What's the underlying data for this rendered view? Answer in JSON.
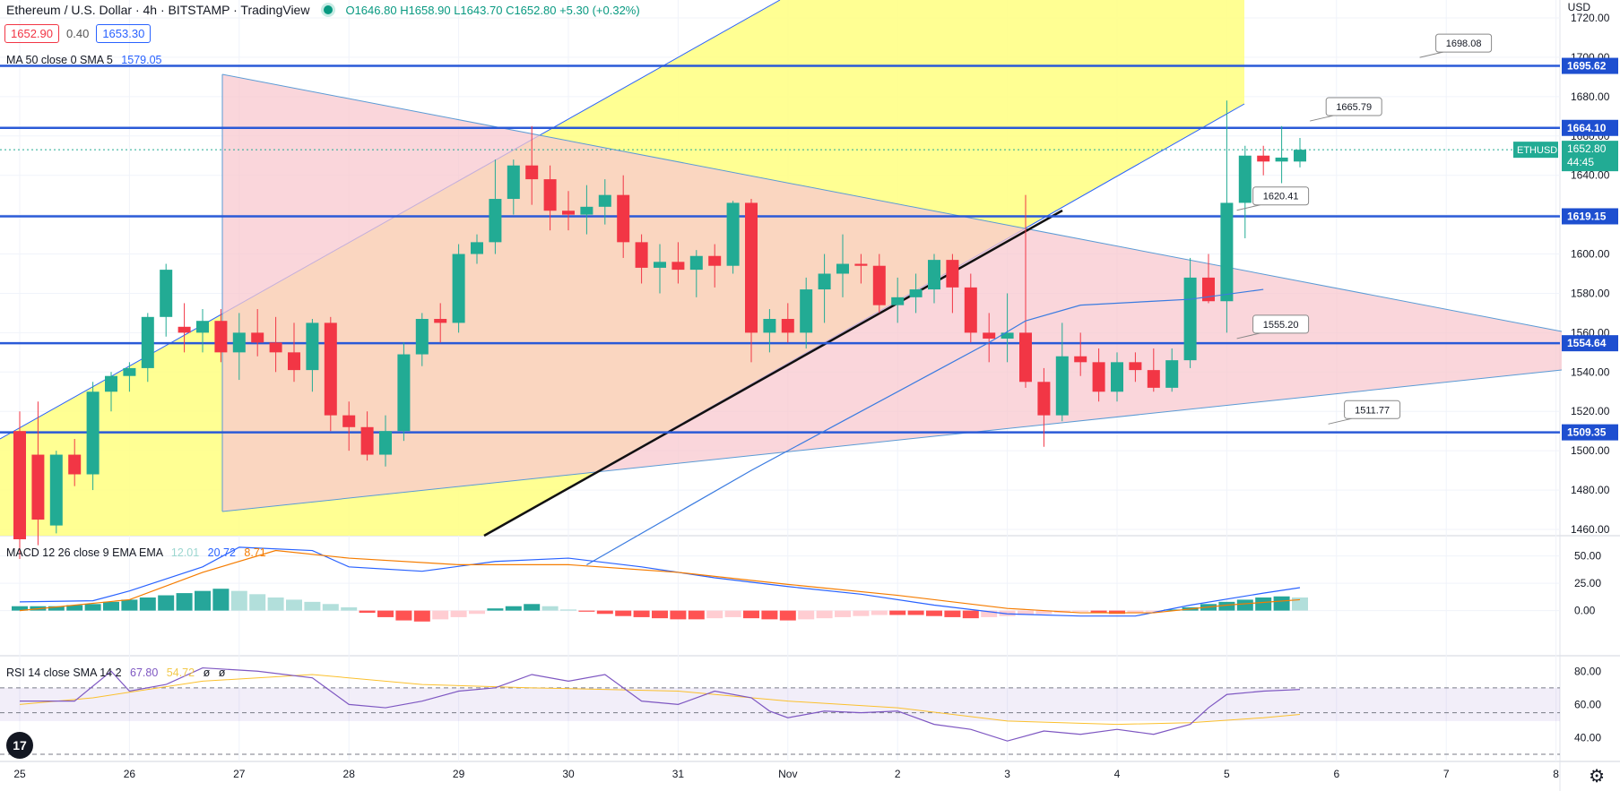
{
  "header": {
    "title": "Ethereum / U.S. Dollar · 4h · BITSTAMP · TradingView",
    "open": "O1646.80",
    "high": "H1658.90",
    "low": "L1643.70",
    "close": "C1652.80",
    "change": "+5.30 (+0.32%)",
    "sell_price": "1652.90",
    "spread": "0.40",
    "buy_price": "1653.30",
    "currency": "USD"
  },
  "indicators": {
    "ma_label": "MA 50 close 0 SMA 5",
    "ma_value": "1579.05",
    "macd_label": "MACD 12 26 close 9 EMA EMA",
    "macd_hist": "12.01",
    "macd_line": "20.72",
    "macd_signal": "8.71",
    "rsi_label": "RSI 14 close SMA 14 2",
    "rsi_value": "67.80",
    "rsi_ma": "54.72",
    "rsi_extra1": "ø",
    "rsi_extra2": "ø"
  },
  "chart_data": {
    "type": "candlestick",
    "symbol": "ETHUSD",
    "last_price": "1652.80",
    "countdown": "44:45",
    "colors": {
      "up": "#22ab94",
      "down": "#f23645",
      "hline": "#2a5ad7",
      "ma": "#3a7be0",
      "macd": "#2962ff",
      "signal": "#f57c00",
      "rsi": "#7e57c2",
      "rsi_ma": "#fbc02d",
      "yellow": "#ffff80",
      "pink": "#f8c8cf"
    },
    "price_axis": {
      "min": 1460,
      "max": 1720,
      "ticks": [
        1460,
        1480,
        1500,
        1520,
        1540,
        1560,
        1580,
        1600,
        1620,
        1640,
        1660,
        1680,
        1700,
        1720
      ]
    },
    "price_tick_labels": [
      "1460.00",
      "1480.00",
      "1500.00",
      "1520.00",
      "1540.00",
      "1560.00",
      "1580.00",
      "1600.00",
      "1620.00",
      "1640.00",
      "1660.00",
      "1680.00",
      "1700.00",
      "1720.00"
    ],
    "x_labels": [
      "25",
      "26",
      "27",
      "28",
      "29",
      "30",
      "31",
      "Nov",
      "2",
      "3",
      "4",
      "5",
      "6",
      "7",
      "8"
    ],
    "x_label_index": [
      0,
      6,
      12,
      18,
      24,
      30,
      36,
      42,
      48,
      54,
      60,
      66,
      72,
      78,
      84
    ],
    "candles": [
      [
        1510,
        1520,
        1445,
        1455
      ],
      [
        1498,
        1525,
        1452,
        1465
      ],
      [
        1462,
        1500,
        1458,
        1498
      ],
      [
        1498,
        1506,
        1482,
        1488
      ],
      [
        1488,
        1535,
        1480,
        1530
      ],
      [
        1530,
        1540,
        1520,
        1538
      ],
      [
        1538,
        1545,
        1530,
        1542
      ],
      [
        1542,
        1570,
        1535,
        1568
      ],
      [
        1568,
        1595,
        1558,
        1592
      ],
      [
        1563,
        1575,
        1550,
        1560
      ],
      [
        1560,
        1572,
        1550,
        1566
      ],
      [
        1566,
        1572,
        1545,
        1550
      ],
      [
        1550,
        1570,
        1536,
        1560
      ],
      [
        1560,
        1572,
        1548,
        1555
      ],
      [
        1555,
        1568,
        1540,
        1550
      ],
      [
        1550,
        1565,
        1535,
        1541
      ],
      [
        1541,
        1567,
        1530,
        1565
      ],
      [
        1565,
        1568,
        1510,
        1518
      ],
      [
        1518,
        1525,
        1500,
        1512
      ],
      [
        1512,
        1520,
        1495,
        1498
      ],
      [
        1498,
        1518,
        1492,
        1510
      ],
      [
        1510,
        1555,
        1505,
        1549
      ],
      [
        1549,
        1570,
        1543,
        1567
      ],
      [
        1567,
        1575,
        1555,
        1565
      ],
      [
        1565,
        1605,
        1560,
        1600
      ],
      [
        1600,
        1610,
        1595,
        1606
      ],
      [
        1606,
        1648,
        1600,
        1628
      ],
      [
        1628,
        1648,
        1620,
        1645
      ],
      [
        1645,
        1665,
        1625,
        1638
      ],
      [
        1638,
        1645,
        1612,
        1622
      ],
      [
        1622,
        1632,
        1612,
        1620
      ],
      [
        1620,
        1635,
        1610,
        1624
      ],
      [
        1624,
        1638,
        1615,
        1630
      ],
      [
        1630,
        1640,
        1598,
        1606
      ],
      [
        1606,
        1610,
        1585,
        1593
      ],
      [
        1593,
        1605,
        1580,
        1596
      ],
      [
        1596,
        1606,
        1585,
        1592
      ],
      [
        1592,
        1602,
        1578,
        1599
      ],
      [
        1599,
        1605,
        1583,
        1594
      ],
      [
        1594,
        1627,
        1590,
        1626
      ],
      [
        1626,
        1628,
        1545,
        1560
      ],
      [
        1560,
        1572,
        1550,
        1567
      ],
      [
        1567,
        1575,
        1555,
        1560
      ],
      [
        1560,
        1588,
        1552,
        1582
      ],
      [
        1582,
        1600,
        1565,
        1590
      ],
      [
        1590,
        1610,
        1578,
        1595
      ],
      [
        1595,
        1600,
        1585,
        1594
      ],
      [
        1594,
        1600,
        1570,
        1574
      ],
      [
        1574,
        1588,
        1565,
        1578
      ],
      [
        1578,
        1590,
        1570,
        1582
      ],
      [
        1582,
        1600,
        1575,
        1597
      ],
      [
        1597,
        1600,
        1570,
        1583
      ],
      [
        1583,
        1590,
        1555,
        1560
      ],
      [
        1560,
        1570,
        1545,
        1557
      ],
      [
        1557,
        1580,
        1545,
        1560
      ],
      [
        1560,
        1630,
        1532,
        1535
      ],
      [
        1535,
        1542,
        1502,
        1518
      ],
      [
        1518,
        1565,
        1515,
        1548
      ],
      [
        1548,
        1560,
        1538,
        1545
      ],
      [
        1545,
        1552,
        1525,
        1530
      ],
      [
        1530,
        1550,
        1525,
        1545
      ],
      [
        1545,
        1550,
        1535,
        1541
      ],
      [
        1541,
        1552,
        1530,
        1532
      ],
      [
        1532,
        1552,
        1530,
        1546
      ],
      [
        1546,
        1598,
        1542,
        1588
      ],
      [
        1588,
        1600,
        1575,
        1576
      ],
      [
        1576,
        1678,
        1560,
        1626
      ],
      [
        1626,
        1655,
        1608,
        1650
      ],
      [
        1650,
        1655,
        1640,
        1647
      ],
      [
        1647,
        1665,
        1636,
        1649
      ],
      [
        1647,
        1659,
        1644,
        1653
      ]
    ],
    "horizontal_levels": [
      {
        "price": 1695.62,
        "label": "1695.62"
      },
      {
        "price": 1664.1,
        "label": "1664.10"
      },
      {
        "price": 1619.15,
        "label": "1619.15"
      },
      {
        "price": 1554.64,
        "label": "1554.64"
      },
      {
        "price": 1509.35,
        "label": "1509.35"
      }
    ],
    "callouts": [
      {
        "price": 1698.08,
        "label": "1698.08",
        "at_index": 79
      },
      {
        "price": 1665.79,
        "label": "1665.79",
        "at_index": 73
      },
      {
        "price": 1620.41,
        "label": "1620.41",
        "at_index": 69
      },
      {
        "price": 1555.2,
        "label": "1555.20",
        "at_index": 69
      },
      {
        "price": 1511.77,
        "label": "1511.77",
        "at_index": 74
      }
    ],
    "ma_series": [
      [
        31,
        1442
      ],
      [
        40,
        1490
      ],
      [
        45,
        1515
      ],
      [
        50,
        1540
      ],
      [
        53,
        1555
      ],
      [
        55,
        1566
      ],
      [
        58,
        1574
      ],
      [
        62,
        1576
      ],
      [
        64,
        1577
      ],
      [
        68,
        1582
      ]
    ],
    "macd": {
      "axis": {
        "min": -20,
        "max": 62,
        "ticks": [
          0,
          25,
          50
        ],
        "tick_labels": [
          "0.00",
          "25.00",
          "50.00"
        ]
      },
      "histogram": [
        4,
        4,
        4,
        5,
        6,
        8,
        10,
        12,
        14,
        16,
        18,
        20,
        18,
        15,
        12,
        10,
        8,
        6,
        3,
        -2,
        -6,
        -9,
        -10,
        -8,
        -6,
        -3,
        2,
        4,
        6,
        4,
        1,
        -1,
        -3,
        -5,
        -6,
        -7,
        -8,
        -8,
        -7,
        -6,
        -7,
        -8,
        -9,
        -8,
        -7,
        -6,
        -5,
        -4,
        -4,
        -4,
        -5,
        -6,
        -7,
        -6,
        -5,
        -4,
        -3,
        -2,
        -1,
        -2,
        -3,
        -2,
        -1,
        1,
        3,
        6,
        8,
        10,
        12,
        13,
        12
      ],
      "macd_line": [
        [
          0,
          8
        ],
        [
          4,
          9
        ],
        [
          6,
          18
        ],
        [
          10,
          40
        ],
        [
          12,
          58
        ],
        [
          16,
          55
        ],
        [
          18,
          40
        ],
        [
          22,
          36
        ],
        [
          26,
          45
        ],
        [
          30,
          48
        ],
        [
          34,
          40
        ],
        [
          38,
          30
        ],
        [
          42,
          22
        ],
        [
          46,
          15
        ],
        [
          50,
          5
        ],
        [
          54,
          -3
        ],
        [
          58,
          -5
        ],
        [
          61,
          -5
        ],
        [
          64,
          5
        ],
        [
          68,
          16
        ],
        [
          70,
          21
        ]
      ],
      "signal_line": [
        [
          0,
          0
        ],
        [
          6,
          10
        ],
        [
          10,
          35
        ],
        [
          14,
          55
        ],
        [
          18,
          48
        ],
        [
          24,
          42
        ],
        [
          30,
          42
        ],
        [
          36,
          35
        ],
        [
          42,
          24
        ],
        [
          48,
          14
        ],
        [
          54,
          2
        ],
        [
          58,
          -2
        ],
        [
          62,
          -2
        ],
        [
          66,
          5
        ],
        [
          70,
          10
        ]
      ]
    },
    "rsi": {
      "axis": {
        "min": 30,
        "max": 85,
        "ticks": [
          40,
          60,
          80
        ],
        "tick_labels": [
          "40.00",
          "60.00",
          "80.00"
        ]
      },
      "band": [
        50,
        70
      ],
      "rsi_line": [
        [
          0,
          62
        ],
        [
          3,
          62
        ],
        [
          5,
          80
        ],
        [
          6,
          68
        ],
        [
          8,
          72
        ],
        [
          10,
          82
        ],
        [
          13,
          80
        ],
        [
          16,
          76
        ],
        [
          18,
          60
        ],
        [
          20,
          58
        ],
        [
          22,
          62
        ],
        [
          24,
          68
        ],
        [
          26,
          70
        ],
        [
          28,
          78
        ],
        [
          30,
          74
        ],
        [
          32,
          78
        ],
        [
          34,
          62
        ],
        [
          36,
          60
        ],
        [
          38,
          68
        ],
        [
          40,
          64
        ],
        [
          41,
          56
        ],
        [
          42,
          52
        ],
        [
          44,
          56
        ],
        [
          46,
          55
        ],
        [
          48,
          56
        ],
        [
          50,
          48
        ],
        [
          52,
          45
        ],
        [
          54,
          38
        ],
        [
          56,
          44
        ],
        [
          58,
          42
        ],
        [
          60,
          45
        ],
        [
          62,
          42
        ],
        [
          64,
          48
        ],
        [
          65,
          58
        ],
        [
          66,
          66
        ],
        [
          68,
          68
        ],
        [
          70,
          69
        ]
      ],
      "rsi_ma_line": [
        [
          0,
          60
        ],
        [
          4,
          64
        ],
        [
          10,
          74
        ],
        [
          16,
          78
        ],
        [
          22,
          72
        ],
        [
          28,
          70
        ],
        [
          36,
          68
        ],
        [
          42,
          62
        ],
        [
          48,
          58
        ],
        [
          54,
          50
        ],
        [
          60,
          48
        ],
        [
          64,
          49
        ],
        [
          68,
          52
        ],
        [
          70,
          54
        ]
      ]
    }
  }
}
